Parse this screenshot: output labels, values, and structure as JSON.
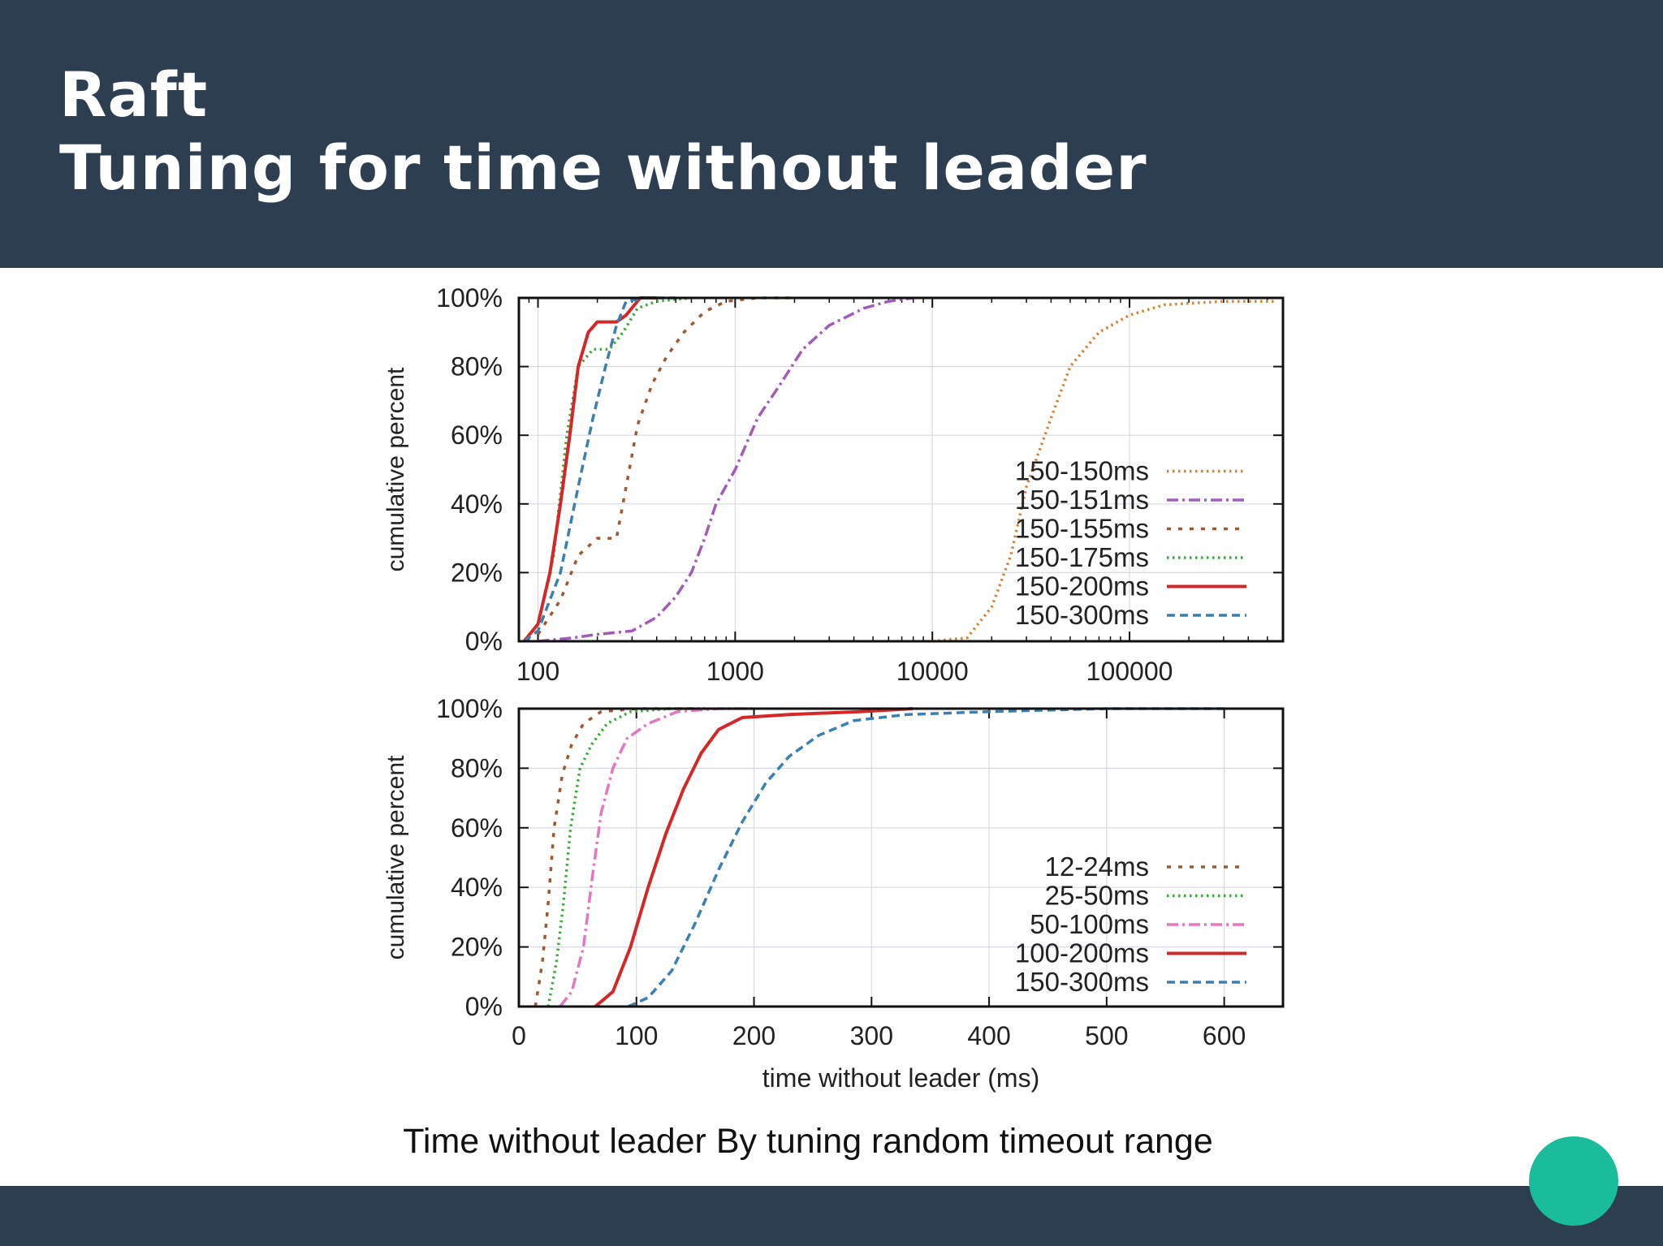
{
  "slide": {
    "title_line1": "Raft",
    "title_line2": "Tuning for time without leader",
    "caption": "Time without leader By tuning random timeout range"
  },
  "colors": {
    "header_bg": "#2c3e50",
    "accent_dot": "#1abc9c"
  },
  "chart_data": [
    {
      "type": "line",
      "title": "",
      "xlabel": "",
      "ylabel": "cumulative percent",
      "xscale": "log",
      "xlim": [
        80,
        600000
      ],
      "ylim": [
        0,
        100
      ],
      "x_ticks": [
        100,
        1000,
        10000,
        100000
      ],
      "x_tick_labels": [
        "100",
        "1000",
        "10000",
        "100000"
      ],
      "y_ticks": [
        0,
        20,
        40,
        60,
        80,
        100
      ],
      "y_tick_labels": [
        "0%",
        "20%",
        "40%",
        "60%",
        "80%",
        "100%"
      ],
      "grid": true,
      "legend_position": "bottom-right",
      "series": [
        {
          "name": "150-150ms",
          "color": "#d2853a",
          "dash": "dotted",
          "points": [
            [
              10000,
              0
            ],
            [
              15000,
              1
            ],
            [
              20000,
              10
            ],
            [
              25000,
              25
            ],
            [
              30000,
              45
            ],
            [
              40000,
              65
            ],
            [
              50000,
              80
            ],
            [
              70000,
              90
            ],
            [
              100000,
              95
            ],
            [
              150000,
              98
            ],
            [
              300000,
              99
            ],
            [
              550000,
              99
            ]
          ]
        },
        {
          "name": "150-151ms",
          "color": "#a05cb8",
          "dash": "dashdot",
          "points": [
            [
              100,
              0
            ],
            [
              150,
              1
            ],
            [
              200,
              2
            ],
            [
              300,
              3
            ],
            [
              400,
              7
            ],
            [
              500,
              13
            ],
            [
              600,
              20
            ],
            [
              700,
              30
            ],
            [
              800,
              40
            ],
            [
              1000,
              50
            ],
            [
              1300,
              65
            ],
            [
              1700,
              75
            ],
            [
              2200,
              85
            ],
            [
              3000,
              92
            ],
            [
              4500,
              97
            ],
            [
              6000,
              99
            ],
            [
              8000,
              100
            ]
          ]
        },
        {
          "name": "150-155ms",
          "color": "#9c5a34",
          "dash": "dashdot2",
          "points": [
            [
              100,
              2
            ],
            [
              130,
              12
            ],
            [
              160,
              25
            ],
            [
              200,
              30
            ],
            [
              250,
              30
            ],
            [
              280,
              45
            ],
            [
              320,
              63
            ],
            [
              380,
              75
            ],
            [
              450,
              83
            ],
            [
              550,
              90
            ],
            [
              700,
              96
            ],
            [
              900,
              99
            ],
            [
              1300,
              100
            ],
            [
              2000,
              100
            ]
          ]
        },
        {
          "name": "150-175ms",
          "color": "#3da83d",
          "dash": "dotted",
          "points": [
            [
              85,
              0
            ],
            [
              100,
              5
            ],
            [
              120,
              25
            ],
            [
              140,
              60
            ],
            [
              160,
              80
            ],
            [
              190,
              85
            ],
            [
              230,
              85
            ],
            [
              270,
              90
            ],
            [
              320,
              97
            ],
            [
              400,
              99
            ],
            [
              600,
              100
            ]
          ]
        },
        {
          "name": "150-200ms",
          "color": "#d62728",
          "dash": "solid",
          "points": [
            [
              85,
              0
            ],
            [
              100,
              5
            ],
            [
              115,
              20
            ],
            [
              130,
              40
            ],
            [
              145,
              60
            ],
            [
              160,
              80
            ],
            [
              180,
              90
            ],
            [
              200,
              93
            ],
            [
              250,
              93
            ],
            [
              280,
              95
            ],
            [
              330,
              100
            ],
            [
              400,
              100
            ]
          ]
        },
        {
          "name": "150-300ms",
          "color": "#3c7fb0",
          "dash": "dashed",
          "points": [
            [
              85,
              0
            ],
            [
              100,
              3
            ],
            [
              130,
              20
            ],
            [
              160,
              45
            ],
            [
              190,
              65
            ],
            [
              220,
              80
            ],
            [
              250,
              92
            ],
            [
              280,
              99
            ],
            [
              350,
              100
            ],
            [
              500,
              100
            ]
          ]
        }
      ]
    },
    {
      "type": "line",
      "title": "",
      "xlabel": "time without leader (ms)",
      "ylabel": "cumulative percent",
      "xscale": "linear",
      "xlim": [
        0,
        650
      ],
      "ylim": [
        0,
        100
      ],
      "x_ticks": [
        0,
        100,
        200,
        300,
        400,
        500,
        600
      ],
      "x_tick_labels": [
        "0",
        "100",
        "200",
        "300",
        "400",
        "500",
        "600"
      ],
      "y_ticks": [
        0,
        20,
        40,
        60,
        80,
        100
      ],
      "y_tick_labels": [
        "0%",
        "20%",
        "40%",
        "60%",
        "80%",
        "100%"
      ],
      "grid": true,
      "legend_position": "bottom-right",
      "series": [
        {
          "name": "12-24ms",
          "color": "#9c5a34",
          "dash": "dashdot2",
          "points": [
            [
              14,
              0
            ],
            [
              20,
              15
            ],
            [
              25,
              35
            ],
            [
              30,
              60
            ],
            [
              37,
              78
            ],
            [
              45,
              88
            ],
            [
              55,
              95
            ],
            [
              70,
              99
            ],
            [
              100,
              100
            ],
            [
              150,
              100
            ]
          ]
        },
        {
          "name": "25-50ms",
          "color": "#3da83d",
          "dash": "dotted",
          "points": [
            [
              25,
              0
            ],
            [
              32,
              15
            ],
            [
              38,
              35
            ],
            [
              44,
              60
            ],
            [
              52,
              80
            ],
            [
              62,
              88
            ],
            [
              75,
              95
            ],
            [
              95,
              99
            ],
            [
              130,
              100
            ],
            [
              160,
              100
            ]
          ]
        },
        {
          "name": "50-100ms",
          "color": "#e377c2",
          "dash": "dashdot",
          "points": [
            [
              35,
              0
            ],
            [
              45,
              5
            ],
            [
              55,
              20
            ],
            [
              63,
              45
            ],
            [
              70,
              65
            ],
            [
              80,
              80
            ],
            [
              92,
              90
            ],
            [
              110,
              95
            ],
            [
              135,
              99
            ],
            [
              170,
              100
            ],
            [
              200,
              100
            ]
          ]
        },
        {
          "name": "100-200ms",
          "color": "#d62728",
          "dash": "solid",
          "points": [
            [
              65,
              0
            ],
            [
              80,
              5
            ],
            [
              95,
              20
            ],
            [
              110,
              40
            ],
            [
              125,
              58
            ],
            [
              140,
              73
            ],
            [
              155,
              85
            ],
            [
              170,
              93
            ],
            [
              190,
              97
            ],
            [
              230,
              98
            ],
            [
              290,
              99
            ],
            [
              335,
              100
            ]
          ]
        },
        {
          "name": "150-300ms",
          "color": "#3c7fb0",
          "dash": "dashed",
          "points": [
            [
              93,
              0
            ],
            [
              110,
              3
            ],
            [
              130,
              12
            ],
            [
              150,
              28
            ],
            [
              170,
              46
            ],
            [
              190,
              62
            ],
            [
              210,
              75
            ],
            [
              230,
              84
            ],
            [
              255,
              91
            ],
            [
              285,
              96
            ],
            [
              330,
              98
            ],
            [
              400,
              99
            ],
            [
              500,
              100
            ],
            [
              600,
              100
            ]
          ]
        }
      ]
    }
  ]
}
